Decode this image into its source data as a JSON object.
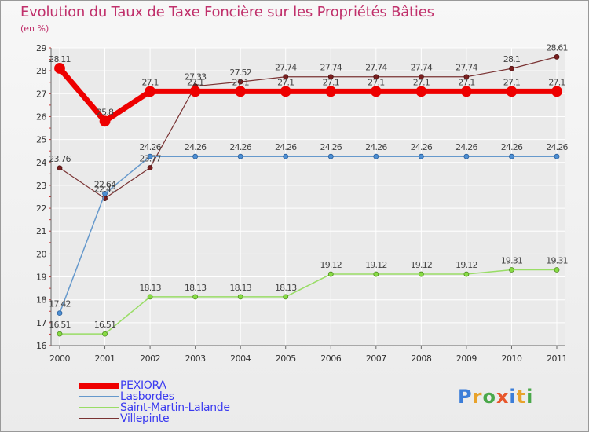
{
  "header": {
    "title": "Evolution du Taux de Taxe Foncière sur les Propriétés Bâties",
    "subtitle": "(en %)"
  },
  "colors": {
    "title": "#c0306b",
    "axis_text": "#333333",
    "grid": "#ffffff",
    "legend_text": "#3a3af0"
  },
  "chart_data": {
    "type": "line",
    "title": "Evolution du Taux de Taxe Foncière sur les Propriétés Bâties",
    "ylabel": "(en %)",
    "xlabel": "",
    "ylim": [
      16,
      29
    ],
    "y_ticks": [
      "16",
      "17",
      "18",
      "19",
      "20",
      "21",
      "22",
      "23",
      "24",
      "25",
      "26",
      "27",
      "28",
      "29"
    ],
    "categories": [
      "2000",
      "2001",
      "2002",
      "2003",
      "2004",
      "2005",
      "2006",
      "2007",
      "2008",
      "2009",
      "2010",
      "2011"
    ],
    "grid": true,
    "legend_position": "bottom-left",
    "series": [
      {
        "name": "PEXIORA",
        "color": "#ee0000",
        "values": [
          28.11,
          25.8,
          27.1,
          27.1,
          27.1,
          27.1,
          27.1,
          27.1,
          27.1,
          27.1,
          27.1,
          27.1
        ],
        "labels": [
          "28.11",
          "25.8",
          "27.1",
          "27.1",
          "27.1",
          "27.1",
          "27.1",
          "27.1",
          "27.1",
          "27.1",
          "27.1",
          "27.1"
        ]
      },
      {
        "name": "Lasbordes",
        "color": "#6699cc",
        "values": [
          17.42,
          22.64,
          24.26,
          24.26,
          24.26,
          24.26,
          24.26,
          24.26,
          24.26,
          24.26,
          24.26,
          24.26
        ],
        "labels": [
          "17.42",
          "22.64",
          "24.26",
          "24.26",
          "24.26",
          "24.26",
          "24.26",
          "24.26",
          "24.26",
          "24.26",
          "24.26",
          "24.26"
        ]
      },
      {
        "name": "Saint-Martin-Lalande",
        "color": "#99dd66",
        "values": [
          16.51,
          16.51,
          18.13,
          18.13,
          18.13,
          18.13,
          19.12,
          19.12,
          19.12,
          19.12,
          19.31,
          19.31
        ],
        "labels": [
          "16.51",
          "16.51",
          "18.13",
          "18.13",
          "18.13",
          "18.13",
          "19.12",
          "19.12",
          "19.12",
          "19.12",
          "19.31",
          "19.31"
        ]
      },
      {
        "name": "Villepinte",
        "color": "#7a3333",
        "values": [
          23.76,
          22.43,
          23.77,
          27.33,
          27.52,
          27.74,
          27.74,
          27.74,
          27.74,
          27.74,
          28.1,
          28.61
        ],
        "labels": [
          "23.76",
          "22.43",
          "23.77",
          "27.33",
          "27.52",
          "27.74",
          "27.74",
          "27.74",
          "27.74",
          "27.74",
          "28.1",
          "28.61"
        ]
      }
    ]
  },
  "legend": {
    "items": [
      {
        "label": "PEXIORA",
        "color": "#ee0000"
      },
      {
        "label": "Lasbordes",
        "color": "#6699cc"
      },
      {
        "label": "Saint-Martin-Lalande",
        "color": "#99dd66"
      },
      {
        "label": "Villepinte",
        "color": "#7a3333"
      }
    ]
  },
  "logo": {
    "letters": [
      "P",
      "r",
      "o",
      "x",
      "i",
      "t",
      "i"
    ],
    "colors": [
      "#3b7dd8",
      "#e8a22b",
      "#4aa84a",
      "#e8562b",
      "#3b7dd8",
      "#e8a22b",
      "#4aa84a"
    ]
  }
}
